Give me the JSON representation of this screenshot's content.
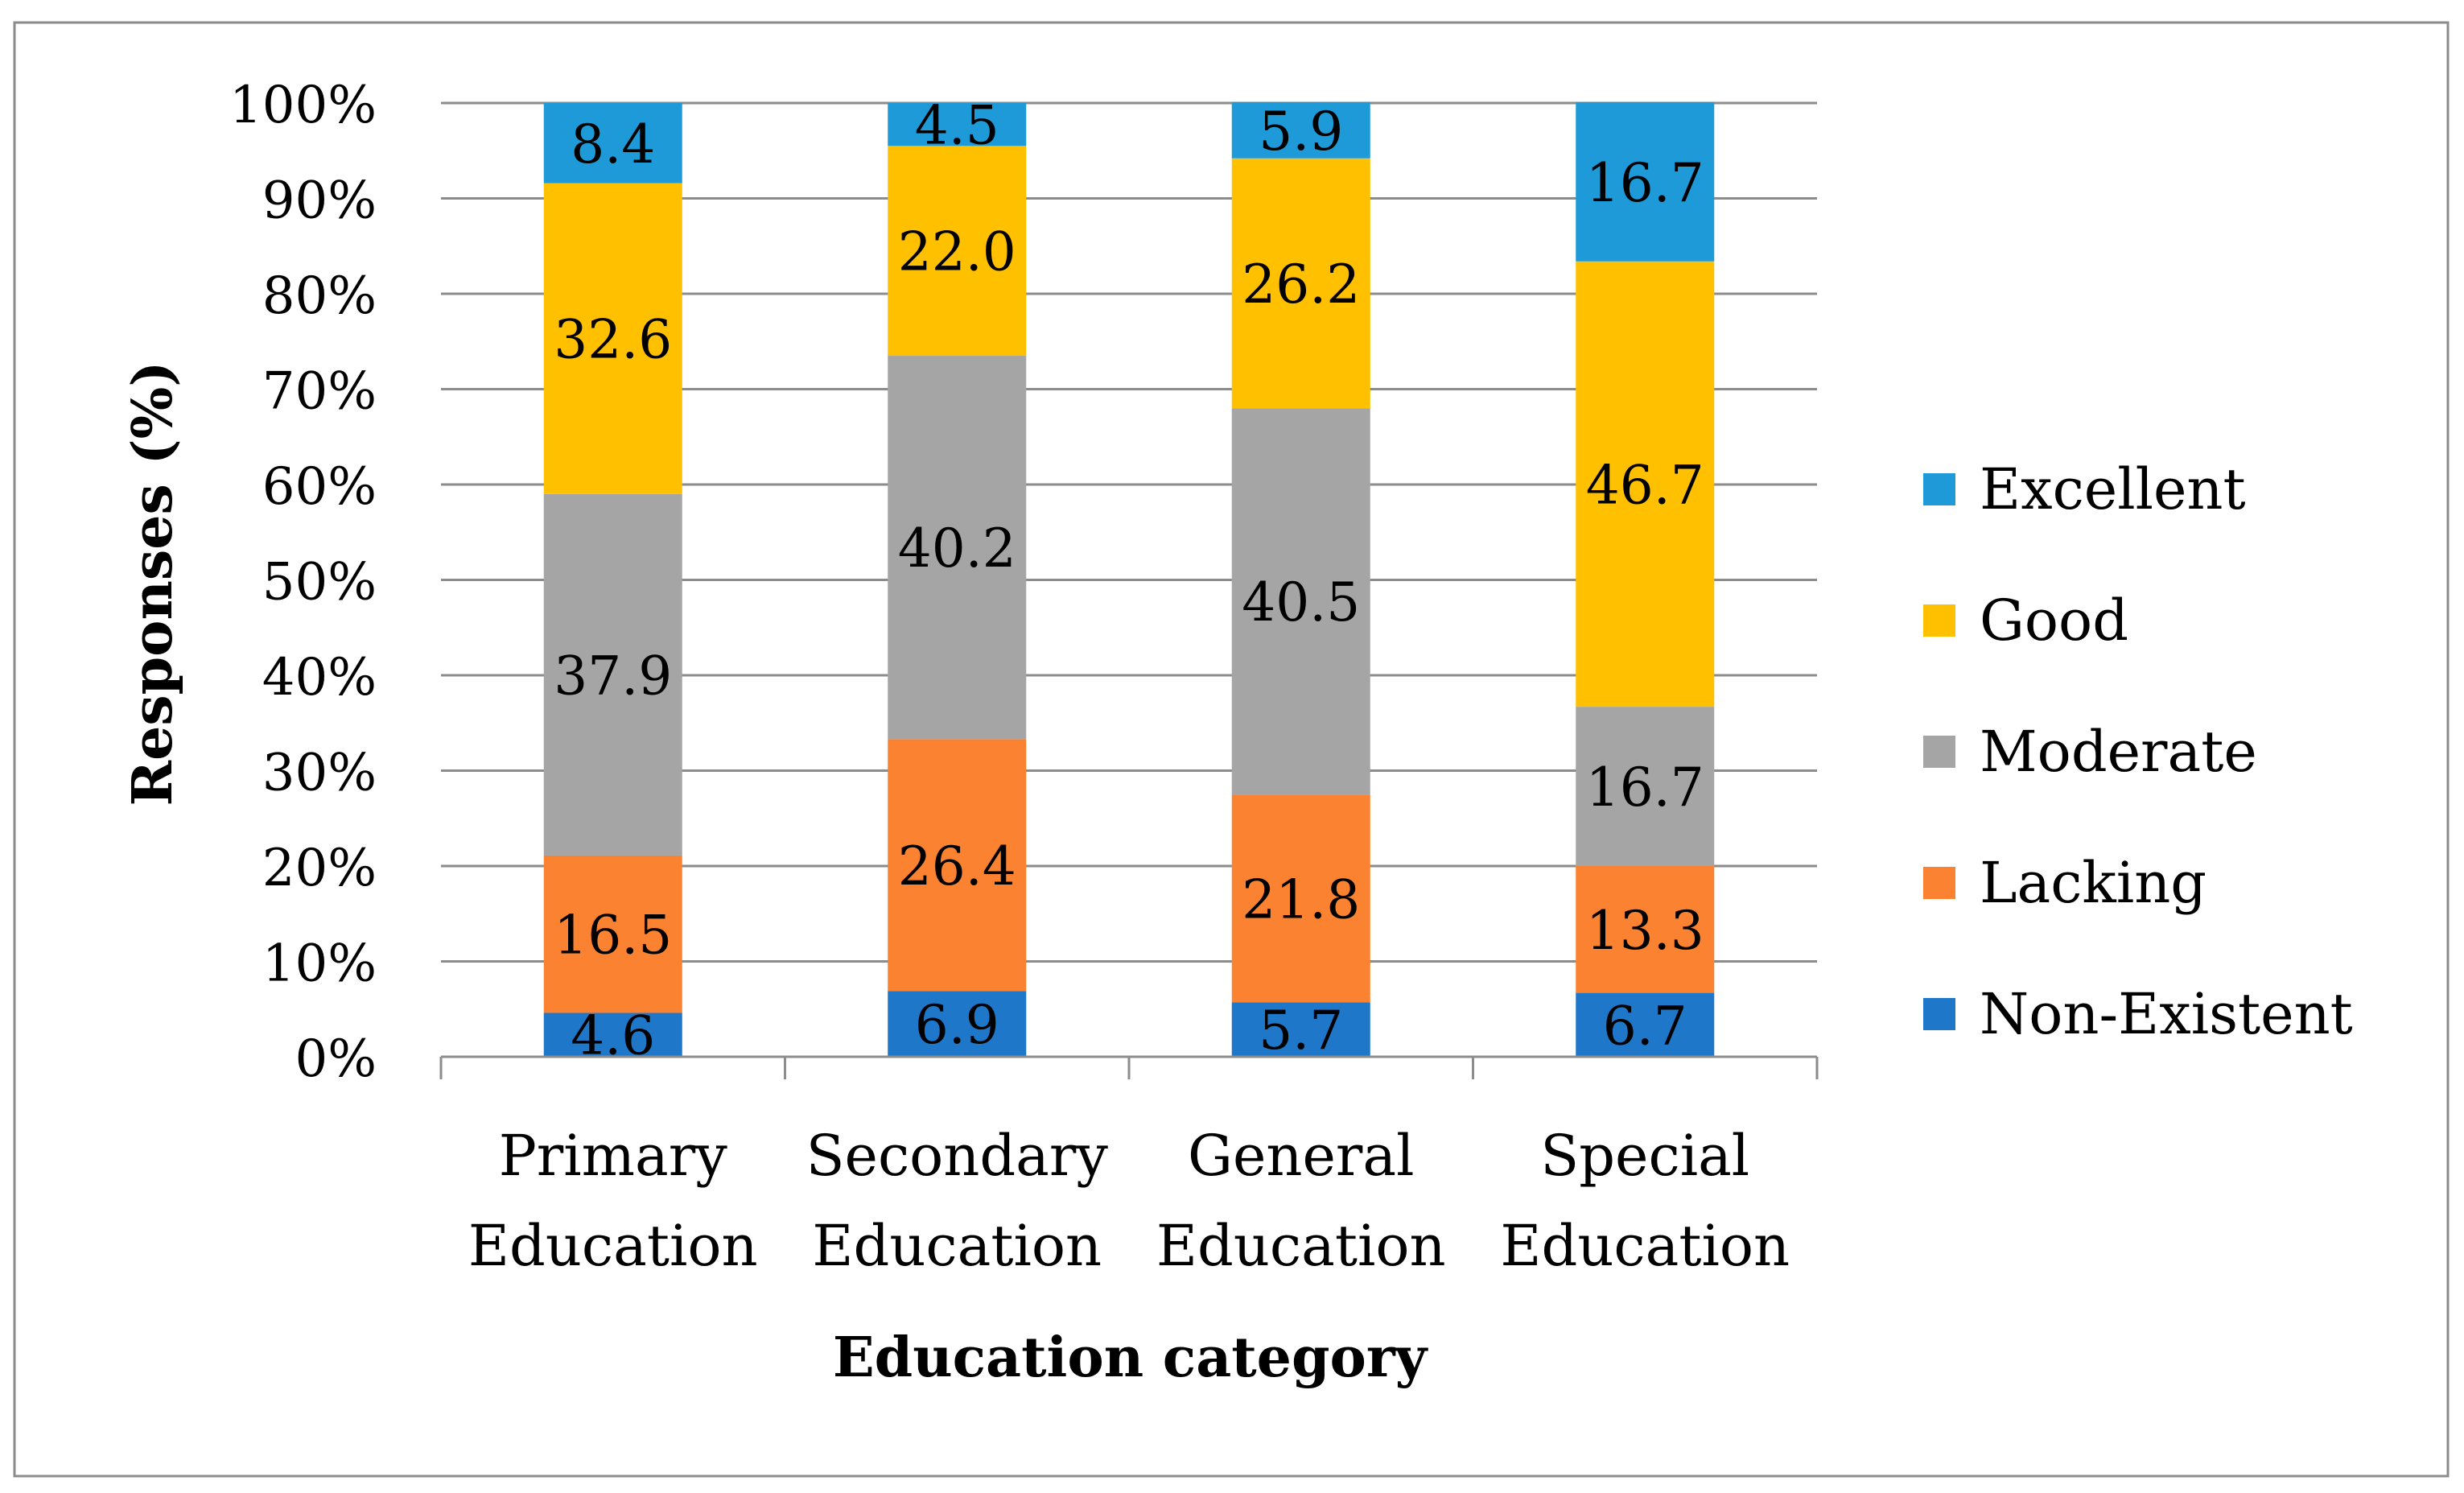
{
  "chart_data": {
    "type": "bar",
    "stacked": true,
    "percent": true,
    "title": "",
    "xlabel": "Education category",
    "ylabel": "Responses (%)",
    "ylim": [
      0,
      100
    ],
    "y_ticks": [
      "0%",
      "10%",
      "20%",
      "30%",
      "40%",
      "50%",
      "60%",
      "70%",
      "80%",
      "90%",
      "100%"
    ],
    "categories": [
      [
        "Primary",
        "Education"
      ],
      [
        "Secondary",
        "Education"
      ],
      [
        "General",
        "Education"
      ],
      [
        "Special",
        "Education"
      ]
    ],
    "series": [
      {
        "name": "Non-Existent",
        "color": "#1F77C9",
        "values": [
          4.6,
          6.9,
          5.7,
          6.7
        ],
        "labels": [
          "4.6",
          "6.9",
          "5.7",
          "6.7"
        ]
      },
      {
        "name": "Lacking",
        "color": "#FB8230",
        "values": [
          16.5,
          26.4,
          21.8,
          13.3
        ],
        "labels": [
          "16.5",
          "26.4",
          "21.8",
          "13.3"
        ]
      },
      {
        "name": "Moderate",
        "color": "#A5A5A5",
        "values": [
          37.9,
          40.2,
          40.5,
          16.7
        ],
        "labels": [
          "37.9",
          "40.2",
          "40.5",
          "16.7"
        ]
      },
      {
        "name": "Good",
        "color": "#FFC000",
        "values": [
          32.6,
          22.0,
          26.2,
          46.7
        ],
        "labels": [
          "32.6",
          "22.0",
          "26.2",
          "46.7"
        ]
      },
      {
        "name": "Excellent",
        "color": "#1E9AD8",
        "values": [
          8.4,
          4.5,
          5.9,
          16.7
        ],
        "labels": [
          "8.4",
          "4.5",
          "5.9",
          "16.7"
        ]
      }
    ],
    "legend": {
      "position": "right",
      "order": [
        "Excellent",
        "Good",
        "Moderate",
        "Lacking",
        "Non-Existent"
      ]
    },
    "grid": true
  }
}
